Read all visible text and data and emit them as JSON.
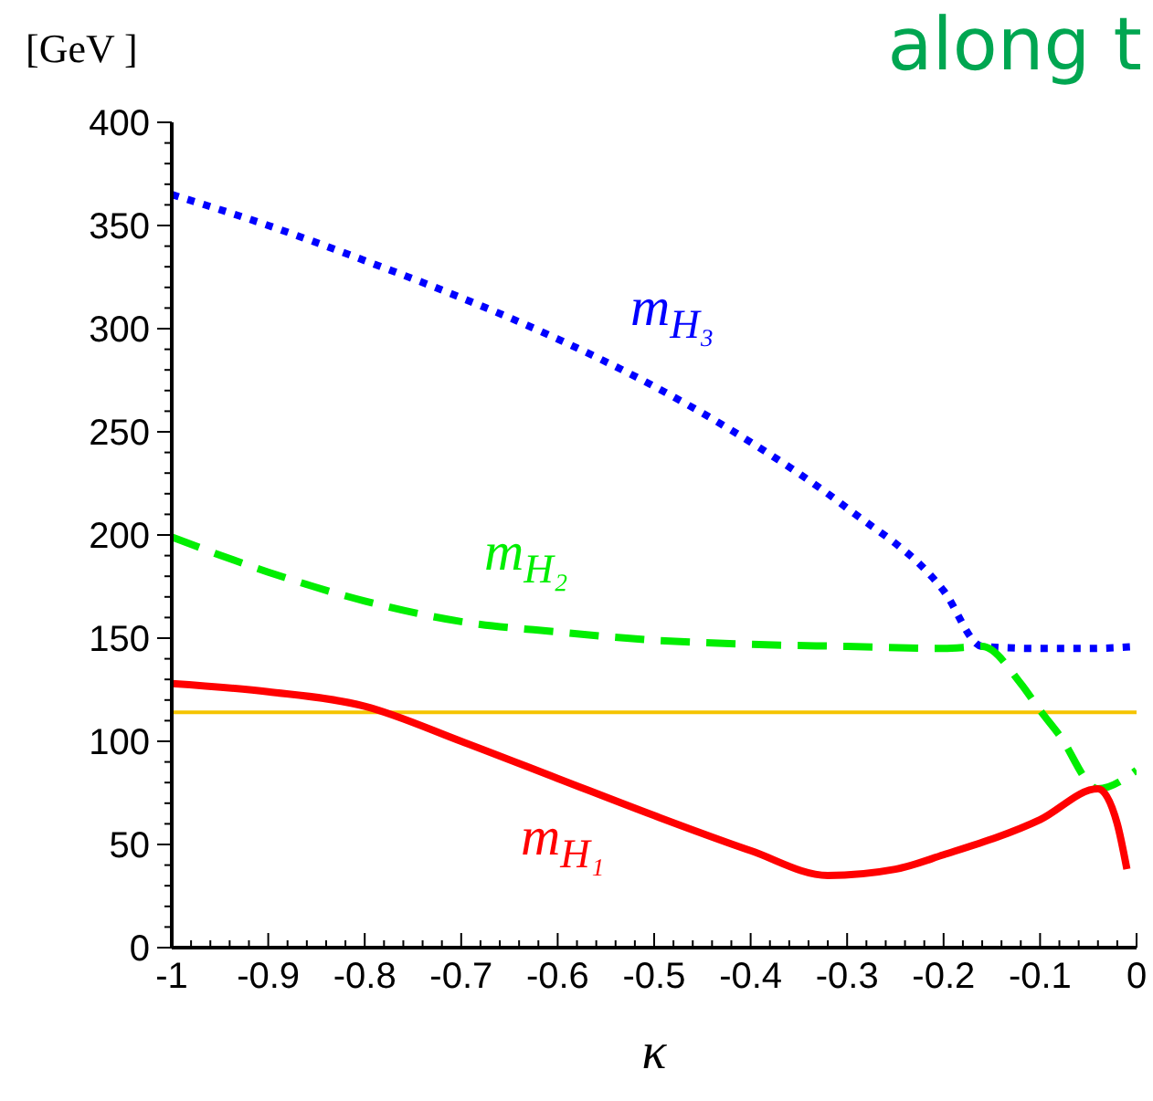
{
  "chart_data": {
    "type": "line",
    "xlabel": "κ",
    "ylabel": "[GeV ]",
    "annotations": [
      "along t"
    ],
    "xlim": [
      -1,
      0
    ],
    "ylim": [
      0,
      400
    ],
    "xticks": [
      -1,
      {
        "value": -0.98,
        "label": null
      },
      {
        "value": -0.96,
        "label": null
      },
      {
        "value": -0.94,
        "label": null
      },
      {
        "value": -0.92,
        "label": null
      },
      -0.9,
      {
        "value": -0.88,
        "label": null
      },
      {
        "value": -0.86,
        "label": null
      },
      {
        "value": -0.84,
        "label": null
      },
      {
        "value": -0.82,
        "label": null
      },
      -0.8,
      {
        "value": -0.78,
        "label": null
      },
      {
        "value": -0.76,
        "label": null
      },
      {
        "value": -0.74,
        "label": null
      },
      {
        "value": -0.72,
        "label": null
      },
      -0.7,
      {
        "value": -0.68,
        "label": null
      },
      {
        "value": -0.66,
        "label": null
      },
      {
        "value": -0.64,
        "label": null
      },
      {
        "value": -0.62,
        "label": null
      },
      -0.6,
      {
        "value": -0.58,
        "label": null
      },
      {
        "value": -0.56,
        "label": null
      },
      {
        "value": -0.54,
        "label": null
      },
      {
        "value": -0.52,
        "label": null
      },
      -0.5,
      {
        "value": -0.48,
        "label": null
      },
      {
        "value": -0.46,
        "label": null
      },
      {
        "value": -0.44,
        "label": null
      },
      {
        "value": -0.42,
        "label": null
      },
      -0.4,
      {
        "value": -0.38,
        "label": null
      },
      {
        "value": -0.36,
        "label": null
      },
      {
        "value": -0.34,
        "label": null
      },
      {
        "value": -0.32,
        "label": null
      },
      -0.3,
      {
        "value": -0.28,
        "label": null
      },
      {
        "value": -0.26,
        "label": null
      },
      {
        "value": -0.24,
        "label": null
      },
      {
        "value": -0.22,
        "label": null
      },
      -0.2,
      {
        "value": -0.18,
        "label": null
      },
      {
        "value": -0.16,
        "label": null
      },
      {
        "value": -0.14,
        "label": null
      },
      {
        "value": -0.12,
        "label": null
      },
      -0.1,
      {
        "value": -0.08,
        "label": null
      },
      {
        "value": -0.06,
        "label": null
      },
      {
        "value": -0.04,
        "label": null
      },
      {
        "value": -0.02,
        "label": null
      },
      0
    ],
    "yticks": [
      0,
      {
        "value": 10,
        "label": null
      },
      {
        "value": 20,
        "label": null
      },
      {
        "value": 30,
        "label": null
      },
      {
        "value": 40,
        "label": null
      },
      50,
      {
        "value": 60,
        "label": null
      },
      {
        "value": 70,
        "label": null
      },
      {
        "value": 80,
        "label": null
      },
      {
        "value": 90,
        "label": null
      },
      100,
      {
        "value": 110,
        "label": null
      },
      {
        "value": 120,
        "label": null
      },
      {
        "value": 130,
        "label": null
      },
      {
        "value": 140,
        "label": null
      },
      150,
      {
        "value": 160,
        "label": null
      },
      {
        "value": 170,
        "label": null
      },
      {
        "value": 180,
        "label": null
      },
      {
        "value": 190,
        "label": null
      },
      200,
      {
        "value": 210,
        "label": null
      },
      {
        "value": 220,
        "label": null
      },
      {
        "value": 230,
        "label": null
      },
      {
        "value": 240,
        "label": null
      },
      250,
      {
        "value": 260,
        "label": null
      },
      {
        "value": 270,
        "label": null
      },
      {
        "value": 280,
        "label": null
      },
      {
        "value": 290,
        "label": null
      },
      300,
      {
        "value": 310,
        "label": null
      },
      {
        "value": 320,
        "label": null
      },
      {
        "value": 330,
        "label": null
      },
      {
        "value": 340,
        "label": null
      },
      350,
      {
        "value": 360,
        "label": null
      },
      {
        "value": 370,
        "label": null
      },
      {
        "value": 380,
        "label": null
      },
      {
        "value": 390,
        "label": null
      },
      400
    ],
    "grid": false,
    "legend": false,
    "marker": "none",
    "ref_lines": [
      {
        "axis": "y",
        "value": 114,
        "color": "#f5c400"
      }
    ],
    "series": [
      {
        "name": "m$_{H₃}$",
        "color": "#0000ff",
        "line_style": "dotted",
        "x": [
          -1,
          -0.9,
          -0.8,
          -0.7,
          -0.6,
          -0.5,
          -0.4,
          -0.3,
          -0.2,
          -0.16,
          -0.1,
          -0.05,
          0
        ],
        "values": [
          365,
          350,
          333,
          315,
          295,
          272,
          245,
          213,
          173,
          146,
          145,
          145,
          146
        ]
      },
      {
        "name": "m$_{H₂}$",
        "color": "#00ee00",
        "line_style": "dashed",
        "x": [
          -1,
          -0.9,
          -0.8,
          -0.7,
          -0.6,
          -0.5,
          -0.4,
          -0.3,
          -0.2,
          -0.16,
          -0.12,
          -0.1,
          -0.08,
          -0.04,
          0
        ],
        "values": [
          199,
          182,
          168,
          158,
          153,
          149,
          147,
          146,
          145,
          146,
          128,
          115,
          103,
          77,
          86
        ]
      },
      {
        "name": "m$_{H₁}$",
        "color": "#ff0000",
        "line_style": "solid",
        "x": [
          -1,
          -0.9,
          -0.8,
          -0.7,
          -0.6,
          -0.5,
          -0.4,
          -0.32,
          -0.25,
          -0.2,
          -0.1,
          -0.04,
          -0.02,
          -0.01
        ],
        "values": [
          128,
          124,
          117,
          100,
          82,
          64,
          47,
          35,
          38,
          45,
          62,
          77,
          60,
          38
        ]
      }
    ]
  }
}
